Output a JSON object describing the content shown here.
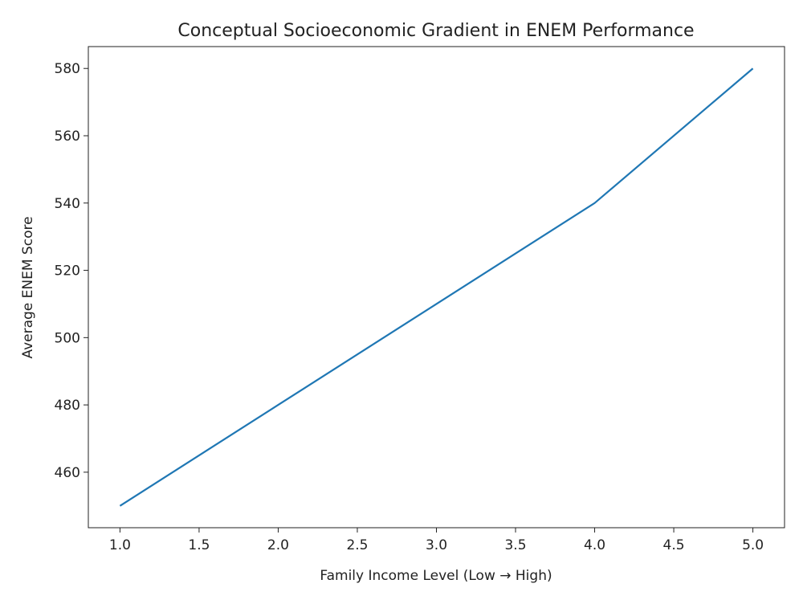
{
  "chart_data": {
    "type": "line",
    "title": "Conceptual Socioeconomic Gradient in ENEM Performance",
    "xlabel": "Family Income Level (Low → High)",
    "ylabel": "Average ENEM Score",
    "x": [
      1,
      2,
      3,
      4,
      5
    ],
    "series": [
      {
        "name": null,
        "color": "#1f77b4",
        "values": [
          450,
          480,
          510,
          540,
          580
        ]
      }
    ],
    "xlim": [
      0.8,
      5.2
    ],
    "xticks": [
      {
        "value": 1,
        "label": "1.0"
      },
      {
        "value": 1.5,
        "label": "1.5"
      },
      {
        "value": 2,
        "label": "2.0"
      },
      {
        "value": 2.5,
        "label": "2.5"
      },
      {
        "value": 3,
        "label": "3.0"
      },
      {
        "value": 3.5,
        "label": "3.5"
      },
      {
        "value": 4,
        "label": "4.0"
      },
      {
        "value": 4.5,
        "label": "4.5"
      },
      {
        "value": 5,
        "label": "5.0"
      }
    ],
    "ylim": [
      443.5,
      586.5
    ],
    "yticks": [
      460,
      480,
      500,
      520,
      540,
      560,
      580
    ],
    "grid": false
  }
}
